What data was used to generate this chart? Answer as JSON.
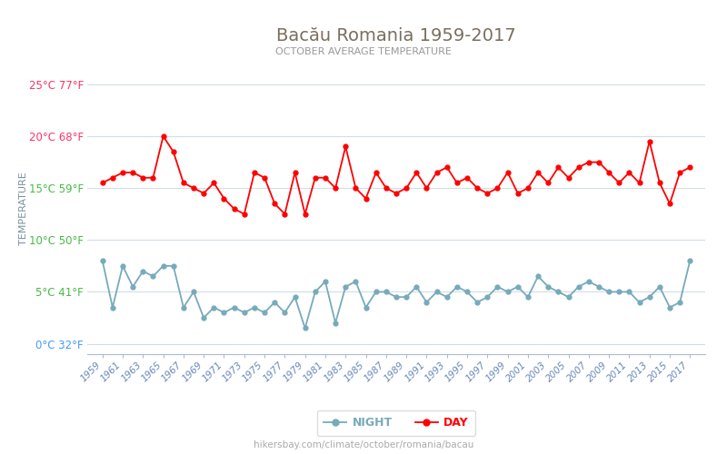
{
  "title": "Bacău Romania 1959-2017",
  "subtitle": "OCTOBER AVERAGE TEMPERATURE",
  "ylabel": "TEMPERATURE",
  "background_color": "#ffffff",
  "plot_bg_color": "#ffffff",
  "grid_color": "#d0dde8",
  "title_color": "#7a6f5e",
  "subtitle_color": "#999999",
  "ylabel_color": "#7a8fa0",
  "years": [
    1959,
    1960,
    1961,
    1962,
    1963,
    1964,
    1965,
    1966,
    1967,
    1968,
    1969,
    1970,
    1971,
    1972,
    1973,
    1974,
    1975,
    1976,
    1977,
    1978,
    1979,
    1980,
    1981,
    1982,
    1983,
    1984,
    1985,
    1986,
    1987,
    1988,
    1989,
    1990,
    1991,
    1992,
    1993,
    1994,
    1995,
    1996,
    1997,
    1998,
    1999,
    2000,
    2001,
    2002,
    2003,
    2004,
    2005,
    2006,
    2007,
    2008,
    2009,
    2010,
    2011,
    2012,
    2013,
    2014,
    2015,
    2016,
    2017
  ],
  "day_temps": [
    15.5,
    16.0,
    16.5,
    16.5,
    16.0,
    16.0,
    20.0,
    18.5,
    15.5,
    15.0,
    14.5,
    15.5,
    14.0,
    13.0,
    12.5,
    16.5,
    16.0,
    13.5,
    12.5,
    16.5,
    12.5,
    16.0,
    16.0,
    15.0,
    19.0,
    15.0,
    14.0,
    16.5,
    15.0,
    14.5,
    15.0,
    16.5,
    15.0,
    16.5,
    17.0,
    15.5,
    16.0,
    15.0,
    14.5,
    15.0,
    16.5,
    14.5,
    15.0,
    16.5,
    15.5,
    17.0,
    16.0,
    17.0,
    17.5,
    17.5,
    16.5,
    15.5,
    16.5,
    15.5,
    19.5,
    15.5,
    13.5,
    16.5,
    17.0
  ],
  "night_temps": [
    8.0,
    3.5,
    7.5,
    5.5,
    7.0,
    6.5,
    7.5,
    7.5,
    3.5,
    5.0,
    2.5,
    3.5,
    3.0,
    3.5,
    3.0,
    3.5,
    3.0,
    4.0,
    3.0,
    4.5,
    1.5,
    5.0,
    6.0,
    2.0,
    5.5,
    6.0,
    3.5,
    5.0,
    5.0,
    4.5,
    4.5,
    5.5,
    4.0,
    5.0,
    4.5,
    5.5,
    5.0,
    4.0,
    4.5,
    5.5,
    5.0,
    5.5,
    4.5,
    6.5,
    5.5,
    5.0,
    4.5,
    5.5,
    6.0,
    5.5,
    5.0,
    5.0,
    5.0,
    4.0,
    4.5,
    5.5,
    3.5,
    4.0,
    8.0
  ],
  "day_color": "#ff0000",
  "night_color": "#77aabb",
  "marker_size": 3.5,
  "line_width": 1.3,
  "yticks_celsius": [
    0,
    5,
    10,
    15,
    20,
    25
  ],
  "yticks_labels": [
    "0°C 32°F",
    "5°C 41°F",
    "10°C 50°F",
    "15°C 59°F",
    "20°C 68°F",
    "25°C 77°F"
  ],
  "ytick_colors": [
    "#4499ff",
    "#44bb44",
    "#44bb44",
    "#44bb44",
    "#ff3366",
    "#ff3366"
  ],
  "footer_text": "hikersbay.com/climate/october/romania/bacau",
  "legend_night": "NIGHT",
  "legend_day": "DAY",
  "ylim_min": -1,
  "ylim_max": 27
}
